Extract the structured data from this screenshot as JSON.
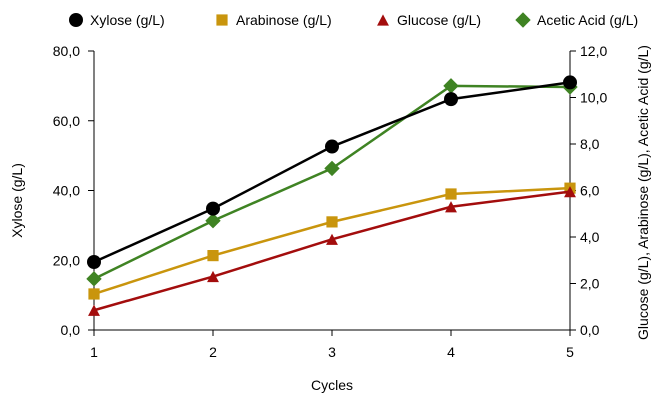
{
  "chart_data": {
    "type": "line",
    "xlabel": "Cycles",
    "ylabel_left": "Xylose (g/L)",
    "ylabel_right": "Glucose (g/L), Arabinose (g/L), Acetic Acid (g/L)",
    "x": [
      1,
      2,
      3,
      4,
      5
    ],
    "x_tick_labels": [
      "1",
      "2",
      "3",
      "4",
      "5"
    ],
    "ylim_left": [
      0,
      80
    ],
    "ylim_right": [
      0,
      12
    ],
    "y_left_tick_labels": [
      "0,0",
      "20,0",
      "40,0",
      "60,0",
      "80,0"
    ],
    "y_right_tick_labels": [
      "0,0",
      "2,0",
      "4,0",
      "6,0",
      "8,0",
      "10,0",
      "12,0"
    ],
    "grid": false,
    "legend_position": "top",
    "series": [
      {
        "name": "Xylose (g/L)",
        "axis": "left",
        "marker": "circle",
        "color": "#000000",
        "values": [
          19.5,
          34.8,
          52.6,
          66.2,
          71.0
        ]
      },
      {
        "name": "Arabinose (g/L)",
        "axis": "right",
        "marker": "square",
        "color": "#c9950d",
        "values": [
          1.55,
          3.2,
          4.65,
          5.85,
          6.1
        ]
      },
      {
        "name": "Glucose (g/L)",
        "axis": "right",
        "marker": "triangle",
        "color": "#a30d0d",
        "values": [
          0.85,
          2.3,
          3.9,
          5.3,
          5.95
        ]
      },
      {
        "name": "Acetic Acid (g/L)",
        "axis": "right",
        "marker": "diamond",
        "color": "#3f8323",
        "values": [
          2.2,
          4.7,
          6.95,
          10.5,
          10.45
        ]
      }
    ]
  }
}
